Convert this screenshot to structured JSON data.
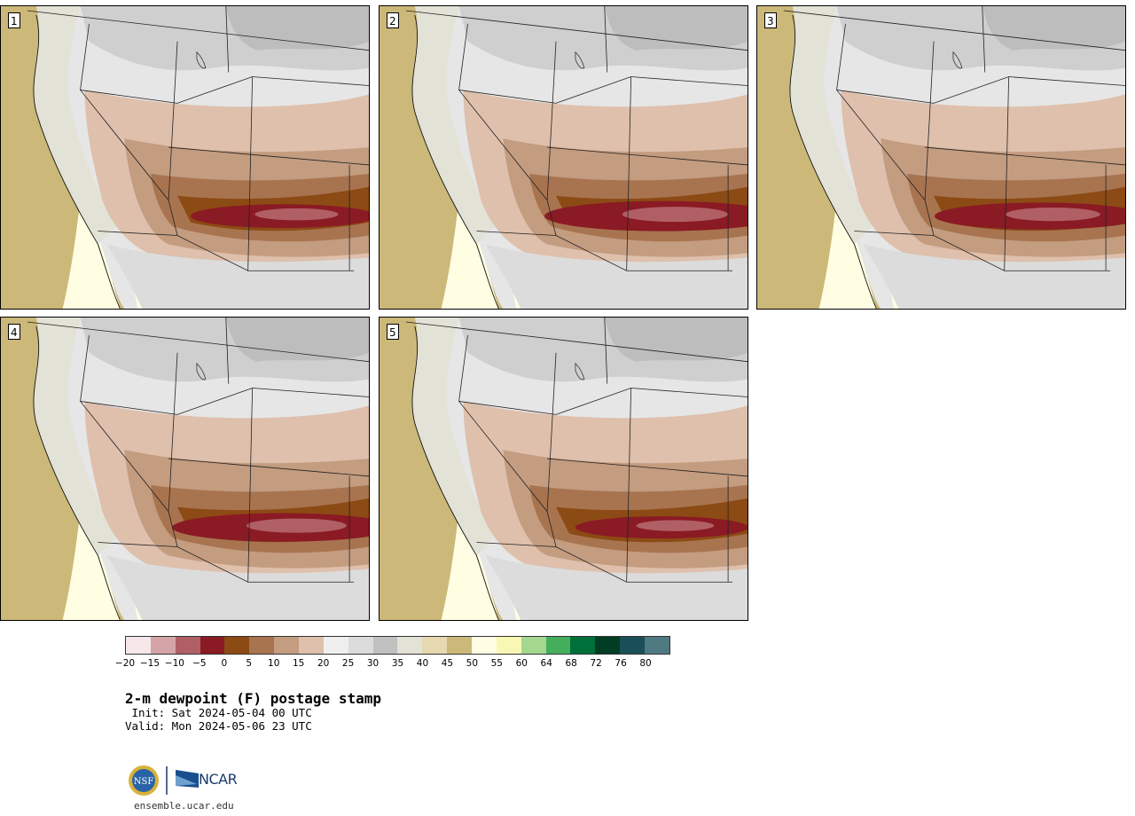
{
  "title": "2-m dewpoint (F) postage stamp",
  "init": " Init: Sat 2024-05-04 00 UTC",
  "valid": "Valid: Mon 2024-05-06 23 UTC",
  "site": "ensemble.ucar.edu",
  "logos": {
    "ncar_text": "NCAR",
    "nsf_text": "NSF"
  },
  "panels": [
    {
      "label": "1",
      "moist_core_strength": 0.75
    },
    {
      "label": "2",
      "moist_core_strength": 0.95
    },
    {
      "label": "3",
      "moist_core_strength": 0.85
    },
    {
      "label": "4",
      "moist_core_strength": 0.9
    },
    {
      "label": "5",
      "moist_core_strength": 0.7
    }
  ],
  "colorbar": {
    "ticks": [
      "−20",
      "−15",
      "−10",
      "−5",
      "0",
      "5",
      "10",
      "15",
      "20",
      "25",
      "30",
      "35",
      "40",
      "45",
      "50",
      "55",
      "60",
      "64",
      "68",
      "72",
      "76",
      "80"
    ],
    "colors": [
      "#f6e8ea",
      "#d4a4a8",
      "#b06065",
      "#8a1a24",
      "#8c4a14",
      "#a87450",
      "#c49c80",
      "#dec0ac",
      "#efefef",
      "#dcdcdc",
      "#c0c0c0",
      "#e2e2d6",
      "#e6d8b0",
      "#ccb878",
      "#fffde2",
      "#f8f8b4",
      "#a4d88e",
      "#44ae5c",
      "#00703a",
      "#003d24",
      "#1b4f58",
      "#4e7a82"
    ]
  }
}
